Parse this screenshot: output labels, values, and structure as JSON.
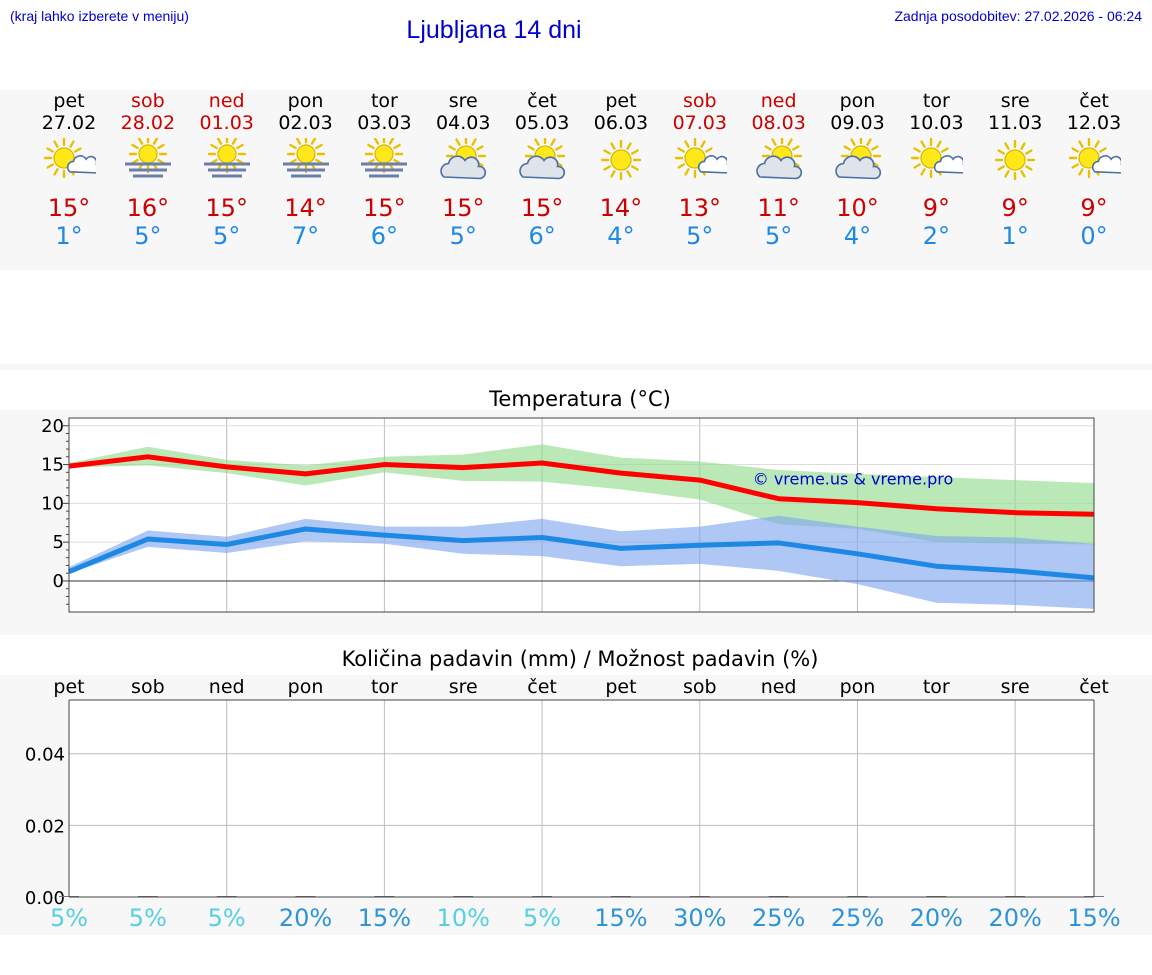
{
  "header": {
    "hint": "(kraj lahko izberete v meniju)",
    "title": "Ljubljana 14 dni",
    "updated": "Zadnja posodobitev: 27.02.2026 - 06:24"
  },
  "colors": {
    "weekend": "#cc0000",
    "weekday": "#000000",
    "tmax": "#cc0000",
    "tmin": "#1e88e5",
    "accent_blue": "#0000cc"
  },
  "forecast": [
    {
      "day": "pet",
      "date": "27.02",
      "weekend": false,
      "icon": "sun-cloud-icon",
      "tmax": "15°",
      "tmin": "1°"
    },
    {
      "day": "sob",
      "date": "28.02",
      "weekend": true,
      "icon": "sun-fog-icon",
      "tmax": "16°",
      "tmin": "5°"
    },
    {
      "day": "ned",
      "date": "01.03",
      "weekend": true,
      "icon": "sun-fog-icon",
      "tmax": "15°",
      "tmin": "5°"
    },
    {
      "day": "pon",
      "date": "02.03",
      "weekend": false,
      "icon": "sun-fog-icon",
      "tmax": "14°",
      "tmin": "7°"
    },
    {
      "day": "tor",
      "date": "03.03",
      "weekend": false,
      "icon": "sun-fog-icon",
      "tmax": "15°",
      "tmin": "6°"
    },
    {
      "day": "sre",
      "date": "04.03",
      "weekend": false,
      "icon": "partly-cloudy-icon",
      "tmax": "15°",
      "tmin": "5°"
    },
    {
      "day": "čet",
      "date": "05.03",
      "weekend": false,
      "icon": "partly-cloudy-icon",
      "tmax": "15°",
      "tmin": "6°"
    },
    {
      "day": "pet",
      "date": "06.03",
      "weekend": false,
      "icon": "sun-icon",
      "tmax": "14°",
      "tmin": "4°"
    },
    {
      "day": "sob",
      "date": "07.03",
      "weekend": true,
      "icon": "sun-cloud-icon",
      "tmax": "13°",
      "tmin": "5°"
    },
    {
      "day": "ned",
      "date": "08.03",
      "weekend": true,
      "icon": "partly-cloudy-icon",
      "tmax": "11°",
      "tmin": "5°"
    },
    {
      "day": "pon",
      "date": "09.03",
      "weekend": false,
      "icon": "partly-cloudy-icon",
      "tmax": "10°",
      "tmin": "4°"
    },
    {
      "day": "tor",
      "date": "10.03",
      "weekend": false,
      "icon": "sun-cloud-icon",
      "tmax": "9°",
      "tmin": "2°"
    },
    {
      "day": "sre",
      "date": "11.03",
      "weekend": false,
      "icon": "sun-icon",
      "tmax": "9°",
      "tmin": "1°"
    },
    {
      "day": "čet",
      "date": "12.03",
      "weekend": false,
      "icon": "sun-cloud-icon",
      "tmax": "9°",
      "tmin": "0°"
    }
  ],
  "chart_data": [
    {
      "type": "line",
      "title": "Temperatura (°C)",
      "watermark": "© vreme.us & vreme.pro",
      "ylim": [
        -4,
        21
      ],
      "yticks": [
        0,
        5,
        10,
        15,
        20
      ],
      "grid": true,
      "x": [
        0,
        1,
        2,
        3,
        4,
        5,
        6,
        7,
        8,
        9,
        10,
        11,
        12,
        13
      ],
      "series": [
        {
          "key": "tmax",
          "color": "#ff0000",
          "values": [
            14.8,
            16.0,
            14.7,
            13.8,
            15.0,
            14.6,
            15.2,
            13.9,
            13.0,
            10.6,
            10.1,
            9.3,
            8.8,
            8.6
          ]
        },
        {
          "key": "tmin",
          "color": "#1e88e5",
          "values": [
            1.2,
            5.4,
            4.7,
            6.7,
            5.9,
            5.2,
            5.6,
            4.2,
            4.6,
            4.9,
            3.5,
            1.9,
            1.3,
            0.4
          ]
        }
      ],
      "bands": [
        {
          "key": "tmax_range",
          "color": "#8fdc8a",
          "upper": [
            15.2,
            17.3,
            15.6,
            14.9,
            16.0,
            16.3,
            17.6,
            15.9,
            15.4,
            14.3,
            13.8,
            13.4,
            13.0,
            12.6
          ],
          "lower": [
            14.6,
            14.9,
            13.9,
            12.3,
            14.0,
            12.9,
            12.8,
            11.8,
            10.5,
            7.3,
            6.7,
            5.0,
            4.8,
            4.7
          ]
        },
        {
          "key": "tmin_range",
          "color": "#7ea4ee",
          "upper": [
            1.8,
            6.5,
            5.7,
            8.0,
            7.0,
            7.0,
            8.0,
            6.4,
            7.0,
            8.4,
            7.0,
            5.8,
            5.6,
            4.8
          ],
          "lower": [
            1.0,
            4.4,
            3.6,
            5.1,
            4.8,
            3.5,
            3.2,
            1.9,
            2.2,
            1.3,
            -0.4,
            -2.8,
            -3.1,
            -3.6
          ]
        }
      ]
    },
    {
      "type": "bar",
      "title": "Količina padavin (mm) / Možnost padavin (%)",
      "categories": [
        "pet",
        "sob",
        "ned",
        "pon",
        "tor",
        "sre",
        "čet",
        "pet",
        "sob",
        "ned",
        "pon",
        "tor",
        "sre",
        "čet"
      ],
      "values": [
        0,
        0,
        0,
        0,
        0,
        0,
        0,
        0,
        0,
        0,
        0,
        0,
        0,
        0
      ],
      "ylim": [
        0,
        0.055
      ],
      "yticks": [
        "0.00",
        "0.02",
        "0.04"
      ],
      "grid": true,
      "probability": [
        "5%",
        "5%",
        "5%",
        "20%",
        "15%",
        "10%",
        "5%",
        "15%",
        "30%",
        "25%",
        "25%",
        "20%",
        "20%",
        "15%"
      ],
      "prob_colors": [
        "#55d0e0",
        "#55d0e0",
        "#55d0e0",
        "#2e94d6",
        "#2e94d6",
        "#55d0e0",
        "#55d0e0",
        "#2e94d6",
        "#2e94d6",
        "#2e94d6",
        "#2e94d6",
        "#2e94d6",
        "#2e94d6",
        "#2e94d6"
      ]
    }
  ]
}
